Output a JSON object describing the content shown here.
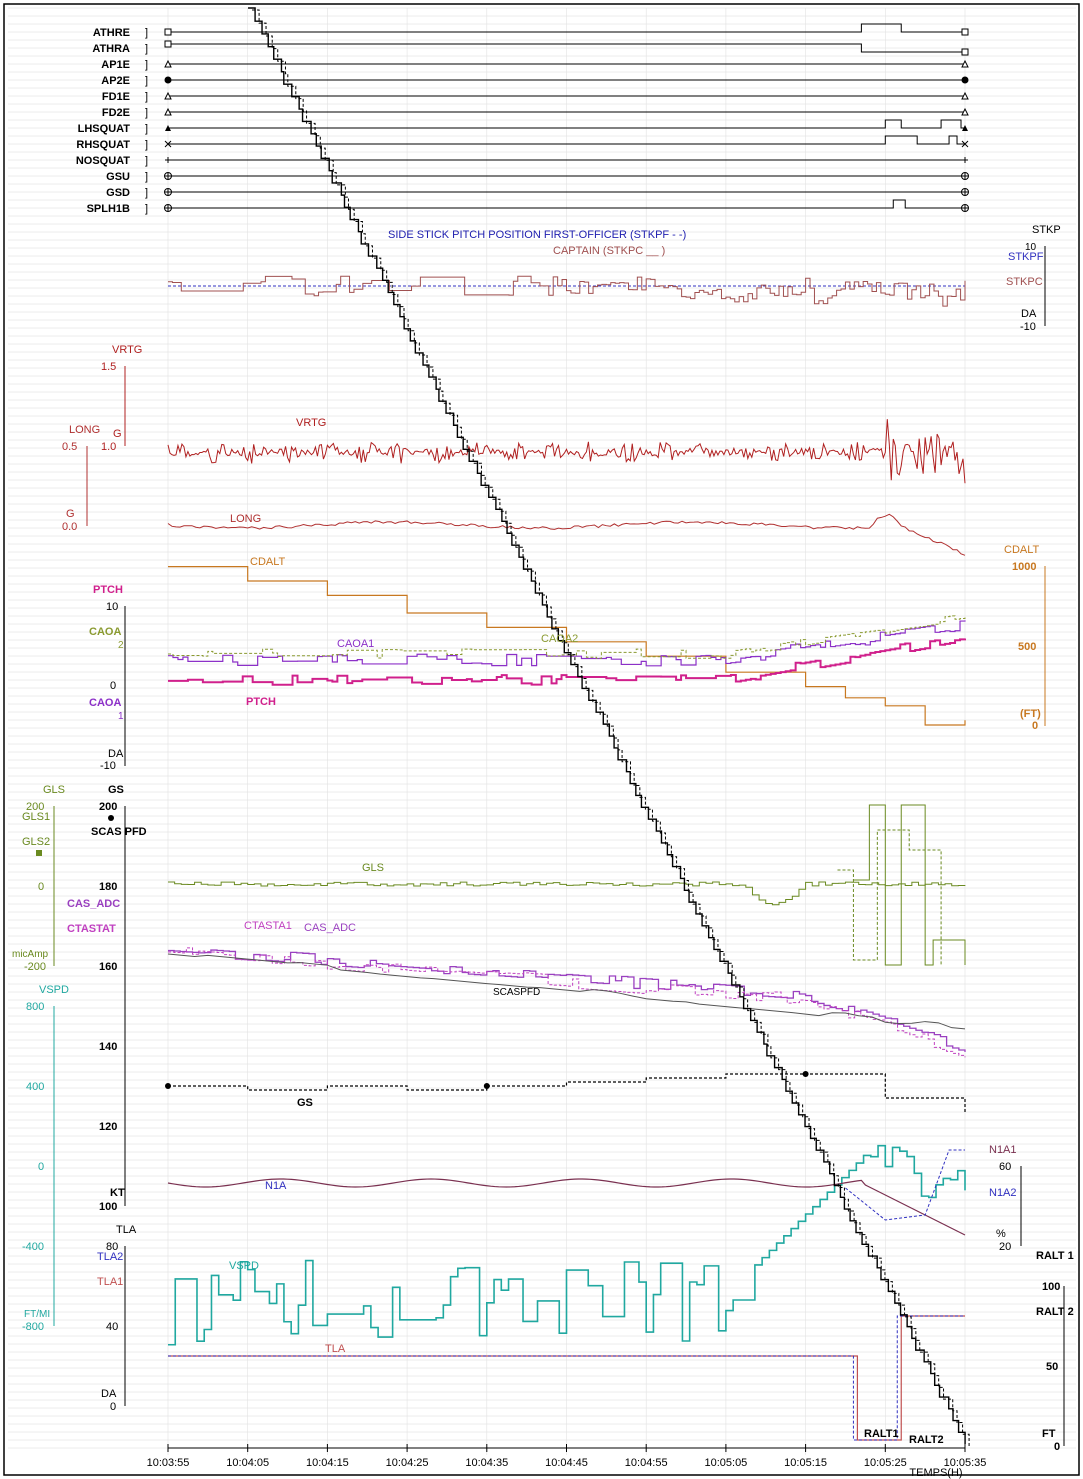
{
  "chart_data": {
    "type": "line",
    "title": "SIDE STICK PITCH POSITION FIRST-OFFICER (STKPF - -)",
    "subtitle": "CAPTAIN (STKPC __ )",
    "x_axis": {
      "label": "TEMPS(H)",
      "ticks": [
        "10:03:55",
        "10:04:05",
        "10:04:15",
        "10:04:25",
        "10:04:35",
        "10:04:45",
        "10:04:55",
        "10:05:05",
        "10:05:15",
        "10:05:25",
        "10:05:35"
      ],
      "range_seconds": [
        0,
        100
      ]
    },
    "discretes": {
      "names": [
        "ATHRE",
        "ATHRA",
        "AP1E",
        "AP2E",
        "FD1E",
        "FD2E",
        "LHSQUAT",
        "RHSQUAT",
        "NOSQUAT",
        "GSU",
        "GSD",
        "SPLH1B"
      ],
      "events": [
        {
          "name": "ATHRE",
          "segments": [
            [
              87,
              92
            ]
          ]
        },
        {
          "name": "ATHRA",
          "segments": [
            [
              87,
              100
            ]
          ]
        },
        {
          "name": "LHSQUAT",
          "segments": [
            [
              90,
              92
            ],
            [
              97,
              99.5
            ]
          ]
        },
        {
          "name": "RHSQUAT",
          "segments": [
            [
              90,
              94
            ],
            [
              98,
              99
            ]
          ]
        },
        {
          "name": "SPLH1B",
          "segments": [
            [
              91,
              92.5
            ]
          ]
        }
      ]
    },
    "stick_panel": {
      "axis_title": "STKP",
      "legend": [
        "STKPF",
        "STKPC"
      ],
      "ticks": [
        "10",
        "DA",
        "-10"
      ],
      "series": [
        {
          "name": "STKPF",
          "style": "dashed",
          "values": [
            0,
            0,
            0,
            0,
            0,
            0,
            0,
            0,
            0,
            0,
            0,
            0
          ]
        },
        {
          "name": "STKPC",
          "style": "solid",
          "values": [
            0,
            -1,
            0,
            1,
            -2,
            2,
            0,
            1,
            -3,
            2,
            -4,
            -3
          ]
        }
      ]
    },
    "accel_panel": {
      "vrtg_axis": {
        "title": "VRTG",
        "unit": "G",
        "ticks": [
          "1.5",
          "1.0"
        ]
      },
      "long_axis": {
        "title": "LONG",
        "unit": "G",
        "ticks": [
          "0.5",
          "0.0"
        ]
      },
      "series_labels": [
        "VRTG",
        "LONG"
      ]
    },
    "pitch_panel": {
      "left_axes": [
        {
          "title": "PTCH",
          "ticks": [
            "10",
            "0",
            "-10"
          ]
        },
        {
          "title": "CAOA",
          "ticks": [
            "2",
            "1"
          ]
        },
        {
          "title": "CAOA",
          "ticks": [
            "DA"
          ]
        }
      ],
      "right_axis": {
        "title": "CDALT",
        "unit": "(FT)",
        "ticks": [
          "1000",
          "500",
          "0"
        ]
      },
      "series_labels": [
        "CDALT",
        "CAOA1",
        "CAOA2",
        "PTCH"
      ],
      "cdalt_ft": [
        [
          0,
          990
        ],
        [
          10,
          900
        ],
        [
          20,
          810
        ],
        [
          30,
          700
        ],
        [
          40,
          610
        ],
        [
          50,
          520
        ],
        [
          60,
          430
        ],
        [
          70,
          330
        ],
        [
          80,
          240
        ],
        [
          85,
          170
        ],
        [
          90,
          120
        ],
        [
          95,
          0
        ],
        [
          100,
          30
        ]
      ]
    },
    "speed_panel": {
      "left_axes": [
        {
          "title": "GLS",
          "legend": [
            "GLS1",
            "GLS2"
          ],
          "unit": "micAmp",
          "ticks": [
            "200",
            "0",
            "-200"
          ]
        },
        {
          "title": "GS",
          "ticks": [
            "200",
            "180",
            "160",
            "140",
            "120",
            "100"
          ],
          "unit": "KT"
        },
        {
          "title": "SCAS PFD"
        },
        {
          "title": "CAS_ADC"
        },
        {
          "title": "CTASTAT"
        }
      ],
      "series_labels": [
        "GLS",
        "CTASTA1",
        "CAS_ADC",
        "SCASPFD",
        "GS"
      ],
      "gs_kt": [
        [
          0,
          130
        ],
        [
          10,
          129
        ],
        [
          20,
          130
        ],
        [
          30,
          129
        ],
        [
          40,
          130
        ],
        [
          50,
          131
        ],
        [
          60,
          132
        ],
        [
          70,
          133
        ],
        [
          80,
          133
        ],
        [
          90,
          127
        ],
        [
          100,
          123
        ]
      ]
    },
    "vspd_panel": {
      "axis": {
        "title": "VSPD",
        "unit": "FT/MI",
        "ticks": [
          "800",
          "400",
          "0",
          "-400",
          "-800"
        ]
      },
      "series_labels": [
        "VSPD"
      ]
    },
    "engine_panel": {
      "left_axis": {
        "title": "TLA",
        "legend": [
          "TLA2",
          "TLA1"
        ],
        "ticks": [
          "80",
          "40",
          "DA",
          "0"
        ]
      },
      "right_axis": {
        "title": "N1A1",
        "legend": [
          "N1A2"
        ],
        "unit": "%",
        "ticks": [
          "60",
          "20"
        ]
      },
      "series_labels": [
        "N1A",
        "TLA"
      ]
    },
    "ralt_panel": {
      "axis": {
        "title": "RALT",
        "unit": "FT",
        "ticks": [
          "100",
          "50",
          "0"
        ]
      },
      "legend": [
        "RALT 1",
        "RALT 2"
      ],
      "series_labels": [
        "RALT1",
        "RALT2"
      ],
      "ralt_ft": [
        [
          0,
          500
        ],
        [
          30,
          380
        ],
        [
          60,
          250
        ],
        [
          70,
          180
        ],
        [
          80,
          100
        ],
        [
          85,
          40
        ],
        [
          87,
          10
        ],
        [
          90,
          3
        ],
        [
          100,
          2
        ]
      ]
    },
    "colors": {
      "discrete": "#000000",
      "stkp": "#a05050",
      "stkpf": "#3030c0",
      "vrtg": "#b02020",
      "long": "#b03030",
      "cdalt": "#c87820",
      "ptch": "#d0208c",
      "caoa": "#8c30c8",
      "caoa2": "#8a9a30",
      "gls": "#6a8a20",
      "gs": "#000000",
      "cas": "#9a40c0",
      "ctastat": "#c040c0",
      "scas": "#555555",
      "vspd": "#20a8a0",
      "n1": "#7a3050",
      "tla": "#c05050",
      "tla2": "#3030c0",
      "ralt": "#000000",
      "grid": "#d8d8d8"
    }
  }
}
